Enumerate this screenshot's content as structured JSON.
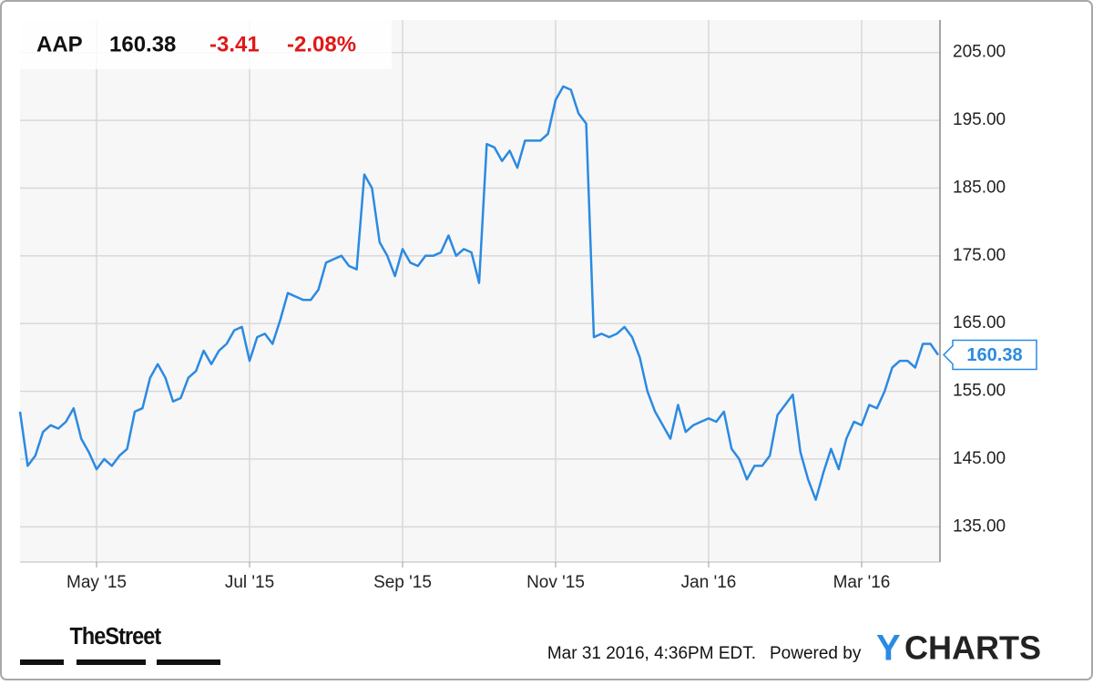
{
  "header": {
    "ticker": "AAP",
    "price": "160.38",
    "change": "-3.41",
    "change_pct": "-2.08%"
  },
  "chart_data": {
    "type": "line",
    "color": "#2b8ae2",
    "categories": [
      null,
      null,
      null,
      null,
      null,
      null,
      null,
      null,
      null,
      null,
      "May '15",
      null,
      null,
      null,
      null,
      null,
      null,
      null,
      null,
      null,
      null,
      null,
      null,
      null,
      null,
      null,
      null,
      null,
      null,
      null,
      "Jul '15",
      null,
      null,
      null,
      null,
      null,
      null,
      null,
      null,
      null,
      null,
      null,
      null,
      null,
      null,
      null,
      null,
      null,
      null,
      null,
      "Sep '15",
      null,
      null,
      null,
      null,
      null,
      null,
      null,
      null,
      null,
      null,
      null,
      null,
      null,
      null,
      null,
      null,
      null,
      null,
      null,
      "Nov '15",
      null,
      null,
      null,
      null,
      null,
      null,
      null,
      null,
      null,
      null,
      null,
      null,
      null,
      null,
      null,
      null,
      null,
      null,
      null,
      "Jan '16",
      null,
      null,
      null,
      null,
      null,
      null,
      null,
      null,
      null,
      null,
      null,
      null,
      null,
      null,
      null,
      null,
      null,
      null,
      null,
      "Mar '16",
      null,
      null,
      null,
      null,
      null,
      null,
      null,
      null,
      null,
      null
    ],
    "values": [
      152,
      144,
      145.5,
      149,
      150,
      149.5,
      150.5,
      152.5,
      148,
      146,
      143.5,
      145,
      144,
      145.5,
      146.5,
      152,
      152.5,
      157,
      159,
      157,
      153.5,
      154,
      157,
      158,
      161,
      159,
      161,
      162,
      164,
      164.5,
      159.5,
      163,
      163.5,
      162,
      165.5,
      169.5,
      169,
      168.5,
      168.5,
      170,
      174,
      174.5,
      175,
      173.5,
      173,
      187,
      185,
      177,
      175,
      172,
      176,
      174,
      173.5,
      175,
      175,
      175.5,
      178,
      175,
      176,
      175.5,
      171,
      191.5,
      191,
      189,
      190.5,
      188,
      192,
      192,
      192,
      193,
      198,
      200,
      199.5,
      196,
      194.5,
      163,
      163.5,
      163,
      163.5,
      164.5,
      163,
      160,
      155,
      152,
      150,
      148,
      153,
      149,
      150,
      150.5,
      151,
      150.5,
      152,
      146.5,
      145,
      142,
      144,
      144,
      145.5,
      151.5,
      153,
      154.5,
      146,
      142,
      139,
      143,
      146.5,
      143.5,
      148,
      150.5,
      150,
      153,
      152.5,
      155,
      158.5,
      159.5,
      159.5,
      158.5,
      162,
      162,
      160.38
    ],
    "ylim": [
      129.8,
      209.8
    ],
    "yticks": [
      {
        "value": 135,
        "label": "135.00"
      },
      {
        "value": 145,
        "label": "145.00"
      },
      {
        "value": 155,
        "label": "155.00"
      },
      {
        "value": 165,
        "label": "165.00"
      },
      {
        "value": 175,
        "label": "175.00"
      },
      {
        "value": 185,
        "label": "185.00"
      },
      {
        "value": 195,
        "label": "195.00"
      },
      {
        "value": 205,
        "label": "205.00"
      }
    ],
    "grid": true
  },
  "footer": {
    "source_logo": "TheStreet",
    "timestamp": "Mar 31 2016, 4:36PM EDT.",
    "powered_by": "Powered by",
    "brand_y": "Y",
    "brand_rest": "CHARTS"
  }
}
